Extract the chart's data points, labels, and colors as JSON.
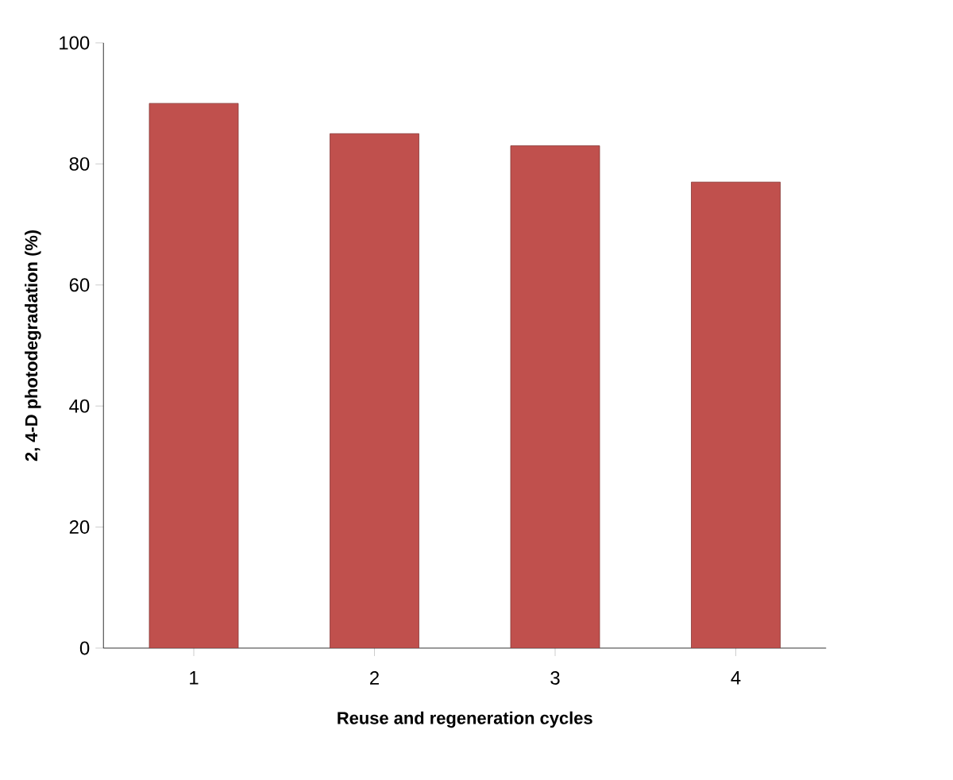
{
  "chart_data": {
    "type": "bar",
    "xlabel": "Reuse and regeneration cycles",
    "ylabel": "2, 4-D photodegradation (%)",
    "categories": [
      "1",
      "2",
      "3",
      "4"
    ],
    "values": [
      90,
      85,
      83,
      77
    ],
    "color": "#c0504d",
    "ylim": [
      0,
      100
    ],
    "yticks": [
      0,
      20,
      40,
      60,
      80,
      100
    ],
    "grid": false
  }
}
